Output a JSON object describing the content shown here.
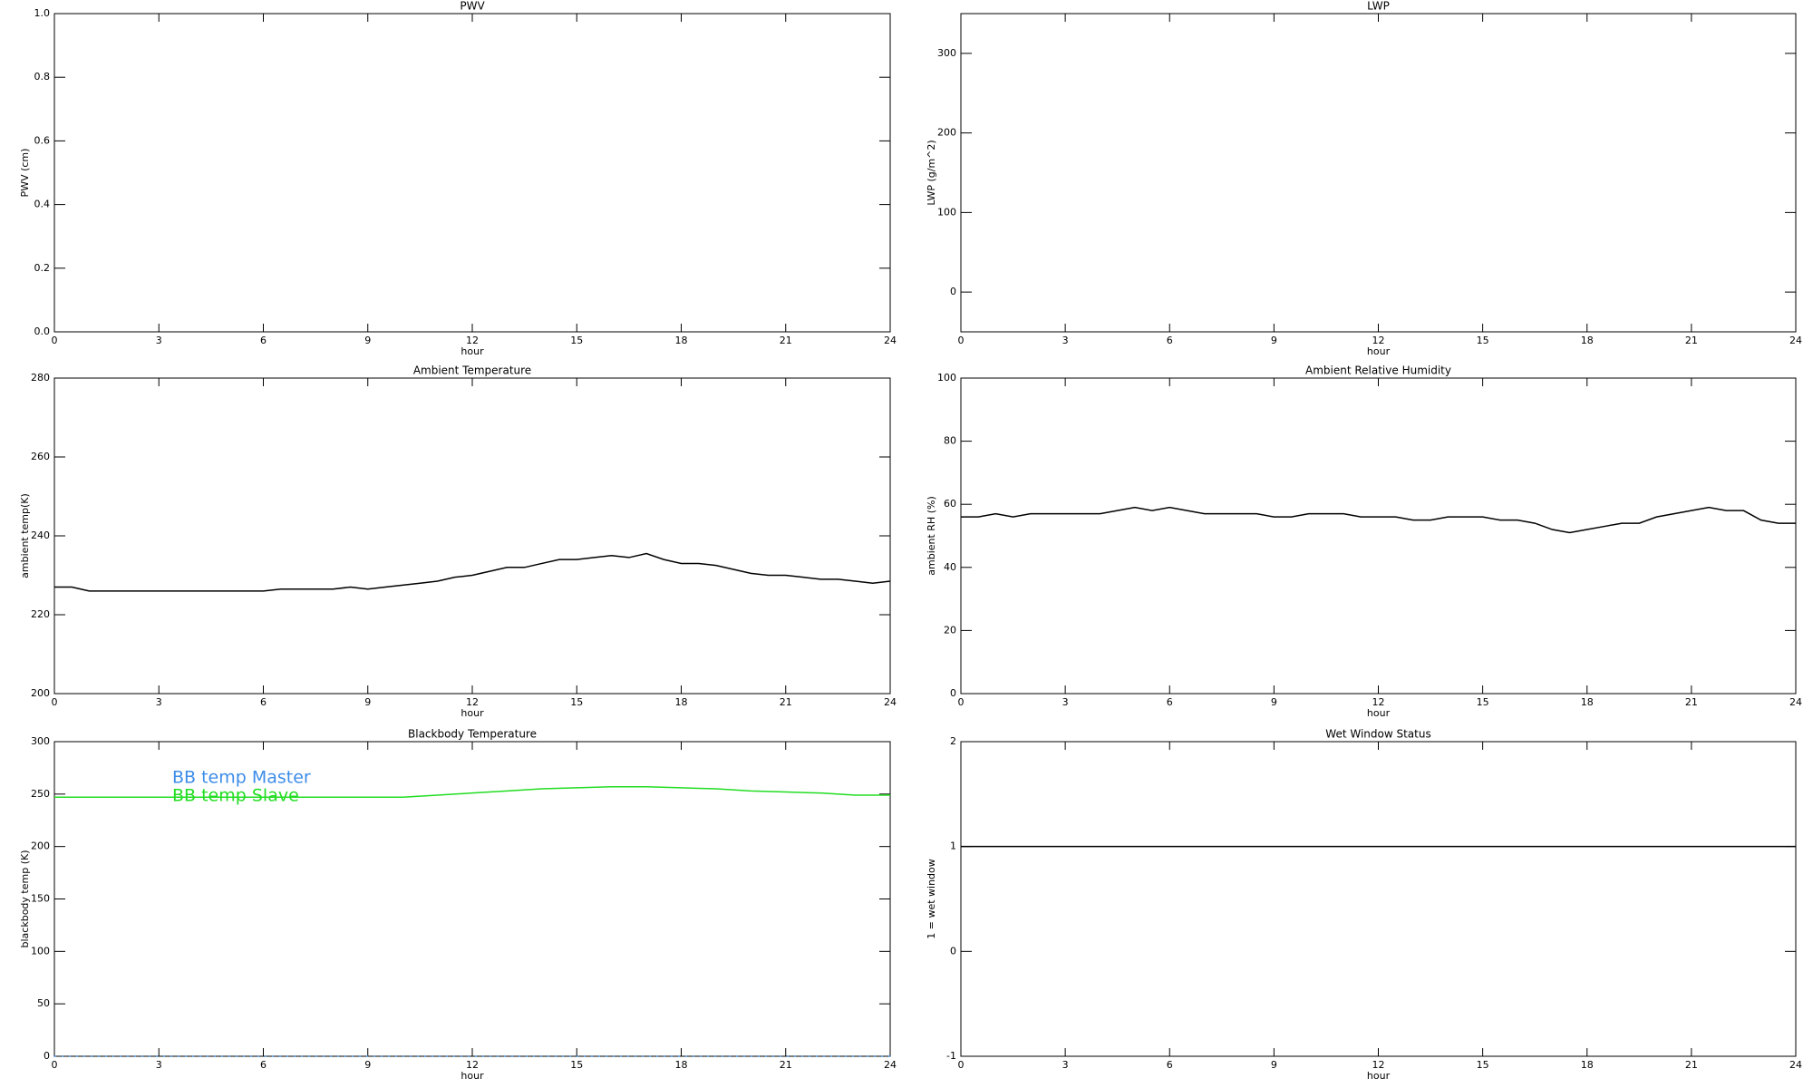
{
  "chart_data": [
    {
      "type": "line",
      "title": "PWV",
      "xlabel": "hour",
      "ylabel": "PWV (cm)",
      "xlim": [
        0,
        24
      ],
      "xticks": [
        0,
        3,
        6,
        9,
        12,
        15,
        18,
        21,
        24
      ],
      "ylim": [
        0,
        1
      ],
      "yticks": [
        {
          "value": 0,
          "label": "0.0"
        },
        0.2,
        0.4,
        0.6,
        0.8,
        {
          "value": 1,
          "label": "1.0"
        }
      ]
    },
    {
      "type": "line",
      "title": "LWP",
      "xlabel": "hour",
      "ylabel": "LWP (g/m^2)",
      "xlim": [
        0,
        24
      ],
      "xticks": [
        0,
        3,
        6,
        9,
        12,
        15,
        18,
        21,
        24
      ],
      "ylim": [
        -50,
        350
      ],
      "yticks": [
        0,
        100,
        200,
        300
      ]
    },
    {
      "type": "line",
      "title": "Ambient Temperature",
      "xlabel": "hour",
      "ylabel": "ambient temp(K)",
      "xlim": [
        0,
        24
      ],
      "xticks": [
        0,
        3,
        6,
        9,
        12,
        15,
        18,
        21,
        24
      ],
      "ylim": [
        200,
        280
      ],
      "yticks": [
        200,
        220,
        240,
        260,
        280
      ],
      "x": [
        0,
        0.5,
        1,
        1.5,
        2,
        2.5,
        3,
        3.5,
        4,
        4.5,
        5,
        5.5,
        6,
        6.5,
        7,
        7.5,
        8,
        8.5,
        9,
        9.5,
        10,
        10.5,
        11,
        11.5,
        12,
        12.5,
        13,
        13.5,
        14,
        14.5,
        15,
        15.5,
        16,
        16.5,
        17,
        17.5,
        18,
        18.5,
        19,
        19.5,
        20,
        20.5,
        21,
        21.5,
        22,
        22.5,
        23,
        23.5,
        24
      ],
      "series": [
        {
          "color": "#000000",
          "values": [
            227,
            227,
            226,
            226,
            226,
            226,
            226,
            226,
            226,
            226,
            226,
            226,
            226,
            226.5,
            226.5,
            226.5,
            226.5,
            227,
            226.5,
            227,
            227.5,
            228,
            228.5,
            229.5,
            230,
            231,
            232,
            232,
            233,
            234,
            234,
            234.5,
            235,
            234.5,
            235.5,
            234,
            233,
            233,
            232.5,
            231.5,
            230.5,
            230,
            230,
            229.5,
            229,
            229,
            228.5,
            228,
            228.5
          ]
        }
      ]
    },
    {
      "type": "line",
      "title": "Ambient Relative Humidity",
      "xlabel": "hour",
      "ylabel": "ambient RH (%)",
      "xlim": [
        0,
        24
      ],
      "xticks": [
        0,
        3,
        6,
        9,
        12,
        15,
        18,
        21,
        24
      ],
      "ylim": [
        0,
        100
      ],
      "yticks": [
        0,
        20,
        40,
        60,
        80,
        100
      ],
      "x": [
        0,
        0.5,
        1,
        1.5,
        2,
        2.5,
        3,
        3.5,
        4,
        4.5,
        5,
        5.5,
        6,
        6.5,
        7,
        7.5,
        8,
        8.5,
        9,
        9.5,
        10,
        10.5,
        11,
        11.5,
        12,
        12.5,
        13,
        13.5,
        14,
        14.5,
        15,
        15.5,
        16,
        16.5,
        17,
        17.5,
        18,
        18.5,
        19,
        19.5,
        20,
        20.5,
        21,
        21.5,
        22,
        22.5,
        23,
        23.5,
        24
      ],
      "series": [
        {
          "color": "#000000",
          "values": [
            56,
            56,
            57,
            56,
            57,
            57,
            57,
            57,
            57,
            58,
            59,
            58,
            59,
            58,
            57,
            57,
            57,
            57,
            56,
            56,
            57,
            57,
            57,
            56,
            56,
            56,
            55,
            55,
            56,
            56,
            56,
            55,
            55,
            54,
            52,
            51,
            52,
            53,
            54,
            54,
            56,
            57,
            58,
            59,
            58,
            58,
            55,
            54,
            54
          ]
        }
      ]
    },
    {
      "type": "line",
      "title": "Blackbody Temperature",
      "xlabel": "hour",
      "ylabel": "blackbody temp (K)",
      "xlim": [
        0,
        24
      ],
      "xticks": [
        0,
        3,
        6,
        9,
        12,
        15,
        18,
        21,
        24
      ],
      "ylim": [
        0,
        300
      ],
      "yticks": [
        0,
        50,
        100,
        150,
        200,
        250,
        300
      ],
      "legend": "upper left",
      "x": [
        0,
        1,
        2,
        3,
        4,
        5,
        6,
        7,
        8,
        9,
        10,
        11,
        12,
        13,
        14,
        15,
        16,
        17,
        18,
        19,
        20,
        21,
        22,
        23,
        24
      ],
      "series": [
        {
          "name": "BB temp Master",
          "color": "#3d8de8",
          "linestyle": "dotted",
          "values": [
            0,
            0,
            0,
            0,
            0,
            0,
            0,
            0,
            0,
            0,
            0,
            0,
            0,
            0,
            0,
            0,
            0,
            0,
            0,
            0,
            0,
            0,
            0,
            0,
            0
          ]
        },
        {
          "name": "BB temp Slave",
          "color": "#22dd22",
          "linestyle": "solid",
          "values": [
            247,
            247,
            247,
            247,
            247,
            247,
            247,
            247,
            247,
            247,
            247,
            249,
            251,
            253,
            255,
            256,
            257,
            257,
            256,
            255,
            253,
            252,
            251,
            249,
            249
          ]
        }
      ]
    },
    {
      "type": "line",
      "title": "Wet Window Status",
      "xlabel": "hour",
      "ylabel": "1 = wet window",
      "xlim": [
        0,
        24
      ],
      "xticks": [
        0,
        3,
        6,
        9,
        12,
        15,
        18,
        21,
        24
      ],
      "ylim": [
        -1,
        2
      ],
      "yticks": [
        -1,
        0,
        1,
        2
      ],
      "x": [
        0,
        24
      ],
      "series": [
        {
          "color": "#000000",
          "values": [
            1,
            1
          ]
        }
      ]
    }
  ]
}
